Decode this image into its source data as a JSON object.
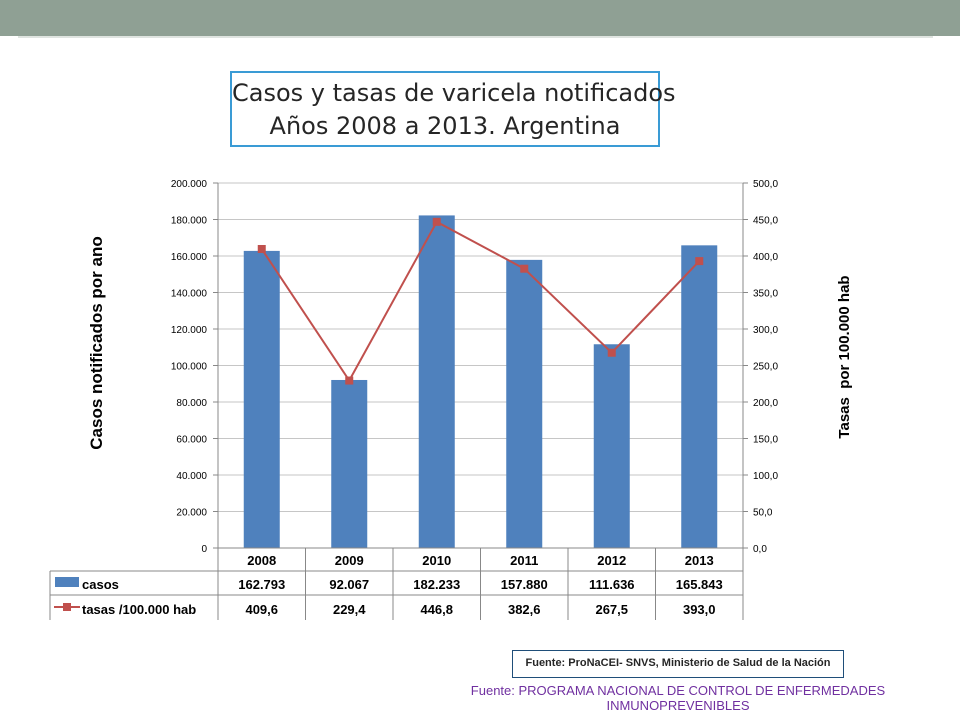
{
  "chart_data": {
    "type": "bar",
    "title": [
      "Casos y tasas de varicela notificados",
      "Años 2008 a 2013. Argentina"
    ],
    "categories": [
      "2008",
      "2009",
      "2010",
      "2011",
      "2012",
      "2013"
    ],
    "series": [
      {
        "name": "casos",
        "type": "bar",
        "axis": "left",
        "color": "#4f81bd",
        "values": [
          162793,
          92067,
          182233,
          157880,
          111636,
          165843
        ],
        "labels": [
          "162.793",
          "92.067",
          "182.233",
          "157.880",
          "111.636",
          "165.843"
        ]
      },
      {
        "name": "tasas /100.000 hab",
        "type": "line",
        "axis": "right",
        "color": "#c0504d",
        "values": [
          409.6,
          229.4,
          446.8,
          382.6,
          267.5,
          393.0
        ],
        "labels": [
          "409,6",
          "229,4",
          "446,8",
          "382,6",
          "267,5",
          "393,0"
        ]
      }
    ],
    "ylabel": "Casos notificados por ano",
    "y2label": "Tasas  por 100.000 hab",
    "ylim": [
      0,
      200000
    ],
    "y2lim": [
      0,
      500
    ],
    "yticks": [
      "0",
      "20.000",
      "40.000",
      "60.000",
      "80.000",
      "100.000",
      "120.000",
      "140.000",
      "160.000",
      "180.000",
      "200.000"
    ],
    "y2ticks": [
      "0,0",
      "50,0",
      "100,0",
      "150,0",
      "200,0",
      "250,0",
      "300,0",
      "350,0",
      "400,0",
      "450,0",
      "500,0"
    ],
    "grid": true,
    "legend": "data table below chart"
  },
  "source_box": "Fuente: ProNaCEI- SNVS, Ministerio de Salud de la Nación",
  "footer": [
    "Fuente: PROGRAMA NACIONAL DE CONTROL DE ENFERMEDADES",
    "INMUNOPREVENIBLES"
  ]
}
